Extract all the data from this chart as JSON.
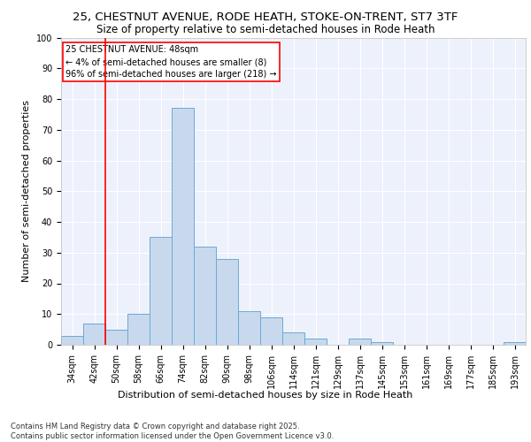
{
  "title_line1": "25, CHESTNUT AVENUE, RODE HEATH, STOKE-ON-TRENT, ST7 3TF",
  "title_line2": "Size of property relative to semi-detached houses in Rode Heath",
  "xlabel": "Distribution of semi-detached houses by size in Rode Heath",
  "ylabel": "Number of semi-detached properties",
  "categories": [
    "34sqm",
    "42sqm",
    "50sqm",
    "58sqm",
    "66sqm",
    "74sqm",
    "82sqm",
    "90sqm",
    "98sqm",
    "106sqm",
    "114sqm",
    "121sqm",
    "129sqm",
    "137sqm",
    "145sqm",
    "153sqm",
    "161sqm",
    "169sqm",
    "177sqm",
    "185sqm",
    "193sqm"
  ],
  "values": [
    3,
    7,
    5,
    10,
    35,
    77,
    32,
    28,
    11,
    9,
    4,
    2,
    0,
    2,
    1,
    0,
    0,
    0,
    0,
    0,
    1
  ],
  "bar_color": "#c8d9ee",
  "bar_edge_color": "#6aaad4",
  "red_line_x": 1.5,
  "annotation_text": "25 CHESTNUT AVENUE: 48sqm\n← 4% of semi-detached houses are smaller (8)\n96% of semi-detached houses are larger (218) →",
  "ylim": [
    0,
    100
  ],
  "yticks": [
    0,
    10,
    20,
    30,
    40,
    50,
    60,
    70,
    80,
    90,
    100
  ],
  "background_color": "#edf1fb",
  "grid_color": "#ffffff",
  "footer_line1": "Contains HM Land Registry data © Crown copyright and database right 2025.",
  "footer_line2": "Contains public sector information licensed under the Open Government Licence v3.0.",
  "title_fontsize": 9.5,
  "subtitle_fontsize": 8.5,
  "axis_label_fontsize": 8,
  "tick_fontsize": 7,
  "annotation_fontsize": 7,
  "footer_fontsize": 6
}
